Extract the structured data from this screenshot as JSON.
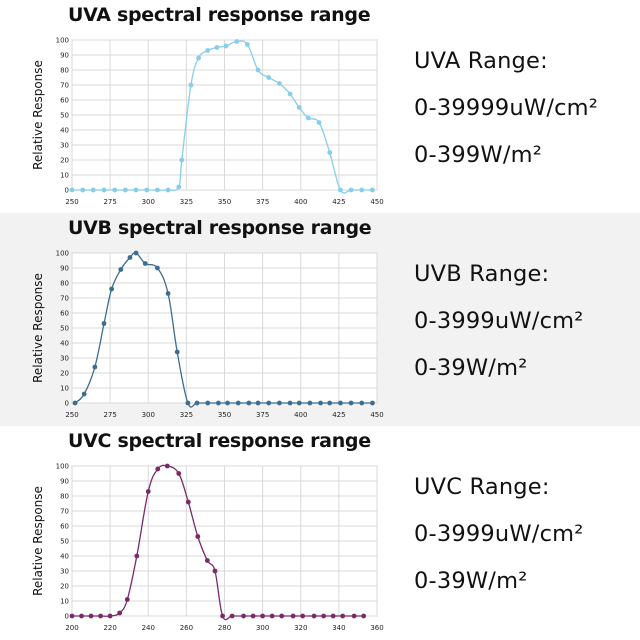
{
  "chart_data": [
    {
      "type": "line",
      "title": "UVA spectral response range",
      "ylabel": "Relative Response",
      "xlabel": "",
      "xlim": [
        250,
        450
      ],
      "ylim": [
        0,
        100
      ],
      "xticks": [
        "250",
        "275",
        "300",
        "325",
        "350",
        "375",
        "400",
        "425",
        "450"
      ],
      "yticks": [
        "0",
        "10",
        "20",
        "30",
        "40",
        "50",
        "60",
        "70",
        "80",
        "90",
        "100"
      ],
      "grid": true,
      "color": "#87ceeb",
      "series": [
        {
          "x": [
            250,
            257,
            264,
            271,
            278,
            285,
            292,
            299,
            306,
            313,
            320,
            322,
            328,
            333,
            339,
            345,
            351,
            358,
            365,
            372,
            379,
            386,
            393,
            399,
            405,
            412,
            419,
            426,
            433,
            440,
            447
          ],
          "y": [
            0,
            0,
            0,
            0,
            0,
            0,
            0,
            0,
            0,
            0,
            2,
            20,
            70,
            88,
            93,
            95,
            96,
            99,
            97,
            80,
            75,
            71,
            64,
            55,
            48,
            45,
            25,
            0,
            0,
            0,
            0
          ]
        }
      ]
    },
    {
      "type": "line",
      "title": "UVB spectral response range",
      "ylabel": "Relative Response",
      "xlabel": "",
      "xlim": [
        250,
        450
      ],
      "ylim": [
        0,
        100
      ],
      "xticks": [
        "250",
        "275",
        "300",
        "325",
        "350",
        "375",
        "400",
        "425",
        "450"
      ],
      "yticks": [
        "0",
        "10",
        "20",
        "30",
        "40",
        "50",
        "60",
        "70",
        "80",
        "90",
        "100"
      ],
      "grid": true,
      "color": "#3d6d8f",
      "series": [
        {
          "x": [
            252,
            258,
            265,
            271,
            276,
            282,
            288,
            292,
            298,
            306,
            313,
            319,
            326,
            332,
            339,
            346,
            352,
            359,
            366,
            372,
            379,
            386,
            393,
            399,
            406,
            413,
            419,
            426,
            433,
            440,
            447
          ],
          "y": [
            0,
            6,
            24,
            53,
            76,
            89,
            97,
            100,
            93,
            90,
            73,
            34,
            0,
            0,
            0,
            0,
            0,
            0,
            0,
            0,
            0,
            0,
            0,
            0,
            0,
            0,
            0,
            0,
            0,
            0,
            0
          ]
        }
      ]
    },
    {
      "type": "line",
      "title": "UVC spectral response range",
      "ylabel": "Relative Response",
      "xlabel": "",
      "xlim": [
        200,
        360
      ],
      "ylim": [
        0,
        100
      ],
      "xticks": [
        "200",
        "220",
        "240",
        "260",
        "280",
        "300",
        "320",
        "340",
        "360"
      ],
      "yticks": [
        "0",
        "10",
        "20",
        "30",
        "40",
        "50",
        "60",
        "70",
        "80",
        "90",
        "100"
      ],
      "grid": true,
      "color": "#7a2a6a",
      "series": [
        {
          "x": [
            200,
            205,
            210,
            215,
            220,
            225,
            229,
            234,
            240,
            245,
            250,
            256,
            261,
            266,
            271,
            275,
            279,
            284,
            290,
            295,
            300,
            305,
            310,
            316,
            321,
            327,
            332,
            337,
            342,
            348,
            353
          ],
          "y": [
            0,
            0,
            0,
            0,
            0,
            2,
            11,
            40,
            83,
            98,
            100,
            95,
            76,
            53,
            37,
            30,
            0,
            0,
            0,
            0,
            0,
            0,
            0,
            0,
            0,
            0,
            0,
            0,
            0,
            0,
            0
          ]
        }
      ]
    }
  ],
  "ranges": [
    {
      "line1": "UVA Range:",
      "line2": "0-39999uW/cm²",
      "line3": "0-399W/m²"
    },
    {
      "line1": "UVB Range:",
      "line2": "0-3999uW/cm²",
      "line3": "0-39W/m²"
    },
    {
      "line1": "UVC Range:",
      "line2": "0-3999uW/cm²",
      "line3": "0-39W/m²"
    }
  ]
}
